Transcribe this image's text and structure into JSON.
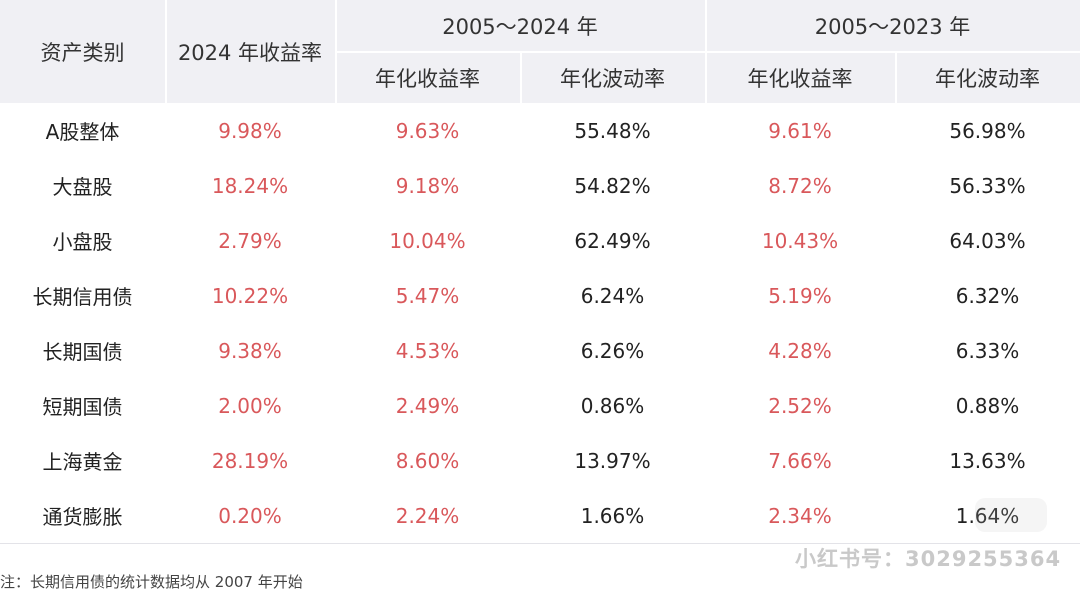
{
  "header": {
    "asset_class": "资产类别",
    "return_2024": "2024 年收益率",
    "period_a": "2005～2024 年",
    "period_b": "2005～2023 年",
    "annual_return": "年化收益率",
    "annual_volatility": "年化波动率"
  },
  "rows": [
    {
      "name": "A股整体",
      "r2024": "9.98%",
      "a_ret": "9.63%",
      "a_vol": "55.48%",
      "b_ret": "9.61%",
      "b_vol": "56.98%"
    },
    {
      "name": "大盘股",
      "r2024": "18.24%",
      "a_ret": "9.18%",
      "a_vol": "54.82%",
      "b_ret": "8.72%",
      "b_vol": "56.33%"
    },
    {
      "name": "小盘股",
      "r2024": "2.79%",
      "a_ret": "10.04%",
      "a_vol": "62.49%",
      "b_ret": "10.43%",
      "b_vol": "64.03%"
    },
    {
      "name": "长期信用债",
      "r2024": "10.22%",
      "a_ret": "5.47%",
      "a_vol": "6.24%",
      "b_ret": "5.19%",
      "b_vol": "6.32%"
    },
    {
      "name": "长期国债",
      "r2024": "9.38%",
      "a_ret": "4.53%",
      "a_vol": "6.26%",
      "b_ret": "4.28%",
      "b_vol": "6.33%"
    },
    {
      "name": "短期国债",
      "r2024": "2.00%",
      "a_ret": "2.49%",
      "a_vol": "0.86%",
      "b_ret": "2.52%",
      "b_vol": "0.88%"
    },
    {
      "name": "上海黄金",
      "r2024": "28.19%",
      "a_ret": "8.60%",
      "a_vol": "13.97%",
      "b_ret": "7.66%",
      "b_vol": "13.63%"
    },
    {
      "name": "通货膨胀",
      "r2024": "0.20%",
      "a_ret": "2.24%",
      "a_vol": "1.66%",
      "b_ret": "2.34%",
      "b_vol": "1.64%"
    }
  ],
  "footnote": "注：长期信用债的统计数据均从 2007 年开始",
  "watermark_id": "小红书号：3029255364",
  "colors": {
    "accent_red": "#d9585b",
    "header_bg": "#f0f0f4"
  }
}
